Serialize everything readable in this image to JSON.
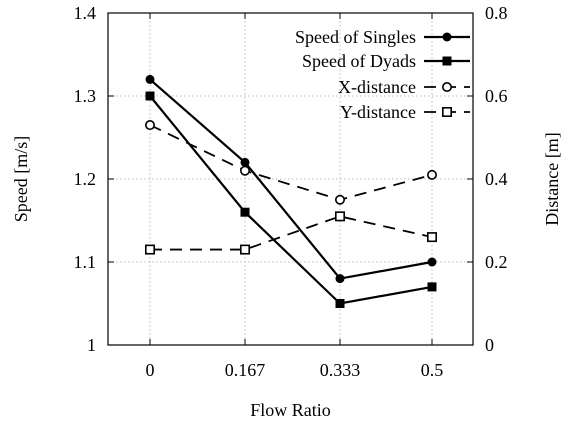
{
  "chart_data": {
    "type": "line",
    "title": "",
    "xlabel": "Flow Ratio",
    "ylabel": "Speed [m/s]",
    "y2label": "Distance [m]",
    "categories": [
      "0",
      "0.167",
      "0.333",
      "0.5"
    ],
    "ylim": [
      1.0,
      1.4
    ],
    "y2lim": [
      0,
      0.8
    ],
    "yticks": [
      "1",
      "1.1",
      "1.2",
      "1.3",
      "1.4"
    ],
    "y2ticks": [
      "0",
      "0.2",
      "0.4",
      "0.6",
      "0.8"
    ],
    "grid": true,
    "legend_position": "top-right",
    "series": [
      {
        "name": "Speed of Singles",
        "axis": "left",
        "line": "solid",
        "marker": "filled-circle",
        "values": [
          1.32,
          1.22,
          1.08,
          1.1
        ]
      },
      {
        "name": "Speed of Dyads",
        "axis": "left",
        "line": "solid",
        "marker": "filled-square",
        "values": [
          1.3,
          1.16,
          1.05,
          1.07
        ]
      },
      {
        "name": "X-distance",
        "axis": "right",
        "line": "dashed",
        "marker": "open-circle",
        "values": [
          0.53,
          0.42,
          0.35,
          0.41
        ]
      },
      {
        "name": "Y-distance",
        "axis": "right",
        "line": "dashed",
        "marker": "open-square",
        "values": [
          0.23,
          0.23,
          0.31,
          0.26
        ]
      }
    ]
  }
}
